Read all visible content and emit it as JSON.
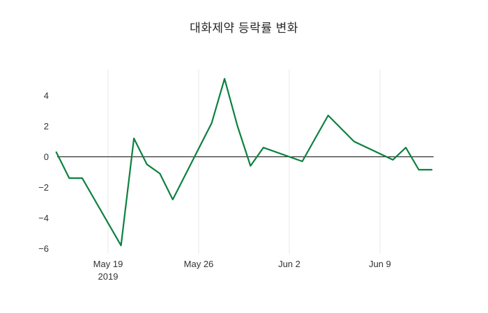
{
  "chart_data": {
    "type": "line",
    "title": "대화제약 등락률 변화",
    "xlabel": "",
    "ylabel": "",
    "line_color": "#0c8040",
    "zero_line_color": "#000000",
    "grid_color": "#e8e8e8",
    "tick_color": "#333333",
    "ylim": [
      -6.35,
      5.7
    ],
    "yticks": [
      {
        "label": "4",
        "value": 4
      },
      {
        "label": "2",
        "value": 2
      },
      {
        "label": "0",
        "value": 0
      },
      {
        "label": "−2",
        "value": -2
      },
      {
        "label": "−4",
        "value": -4
      },
      {
        "label": "−6",
        "value": -6
      }
    ],
    "xticks": [
      {
        "label": "May 19",
        "sublabel": "2019",
        "date": "2019-05-19"
      },
      {
        "label": "May 26",
        "sublabel": "",
        "date": "2019-05-26"
      },
      {
        "label": "Jun 2",
        "sublabel": "",
        "date": "2019-06-02"
      },
      {
        "label": "Jun 9",
        "sublabel": "",
        "date": "2019-06-09"
      }
    ],
    "series": [
      {
        "points": [
          {
            "date": "2019-05-15",
            "value": 0.3
          },
          {
            "date": "2019-05-16",
            "value": -1.4
          },
          {
            "date": "2019-05-17",
            "value": -1.4
          },
          {
            "date": "2019-05-20",
            "value": -5.8
          },
          {
            "date": "2019-05-21",
            "value": 1.2
          },
          {
            "date": "2019-05-22",
            "value": -0.5
          },
          {
            "date": "2019-05-23",
            "value": -1.1
          },
          {
            "date": "2019-05-24",
            "value": -2.8
          },
          {
            "date": "2019-05-27",
            "value": 2.2
          },
          {
            "date": "2019-05-28",
            "value": 5.1
          },
          {
            "date": "2019-05-29",
            "value": 2.0
          },
          {
            "date": "2019-05-30",
            "value": -0.6
          },
          {
            "date": "2019-05-31",
            "value": 0.6
          },
          {
            "date": "2019-06-03",
            "value": -0.3
          },
          {
            "date": "2019-06-04",
            "value": 1.2
          },
          {
            "date": "2019-06-05",
            "value": 2.7
          },
          {
            "date": "2019-06-07",
            "value": 1.0
          },
          {
            "date": "2019-06-10",
            "value": -0.2
          },
          {
            "date": "2019-06-11",
            "value": 0.6
          },
          {
            "date": "2019-06-12",
            "value": -0.85
          },
          {
            "date": "2019-06-13",
            "value": -0.85
          }
        ]
      }
    ]
  }
}
